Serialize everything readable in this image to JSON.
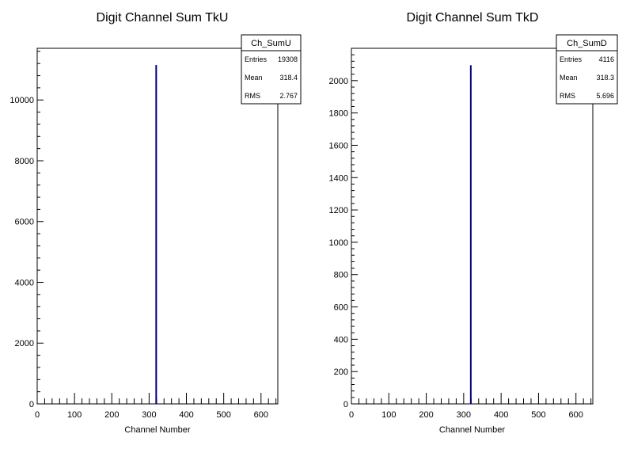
{
  "canvas": {
    "background": "#ffffff"
  },
  "chart_data": [
    {
      "type": "bar",
      "title": "Digit Channel Sum TkU",
      "xlabel": "Channel Number",
      "ylabel": "",
      "xlim": [
        0,
        645
      ],
      "ylim": [
        0,
        11700
      ],
      "x_ticks": [
        0,
        100,
        200,
        300,
        400,
        500,
        600
      ],
      "y_ticks": [
        0,
        2000,
        4000,
        6000,
        8000,
        10000
      ],
      "grid": false,
      "line_color": "#00007f",
      "bins": [
        {
          "x": 319,
          "value": 11150
        }
      ],
      "stats": {
        "name": "Ch_SumU",
        "rows": [
          {
            "label": "Entries",
            "value": "19308"
          },
          {
            "label": "Mean",
            "value": "318.4"
          },
          {
            "label": "RMS",
            "value": "2.767"
          }
        ]
      }
    },
    {
      "type": "bar",
      "title": "Digit Channel Sum TkD",
      "xlabel": "Channel Number",
      "ylabel": "",
      "xlim": [
        0,
        645
      ],
      "ylim": [
        0,
        2200
      ],
      "x_ticks": [
        0,
        100,
        200,
        300,
        400,
        500,
        600
      ],
      "y_ticks": [
        0,
        200,
        400,
        600,
        800,
        1000,
        1200,
        1400,
        1600,
        1800,
        2000
      ],
      "grid": false,
      "line_color": "#00007f",
      "bins": [
        {
          "x": 319,
          "value": 2095
        }
      ],
      "stats": {
        "name": "Ch_SumD",
        "rows": [
          {
            "label": "Entries",
            "value": "4116"
          },
          {
            "label": "Mean",
            "value": "318.3"
          },
          {
            "label": "RMS",
            "value": "5.696"
          }
        ]
      }
    }
  ]
}
